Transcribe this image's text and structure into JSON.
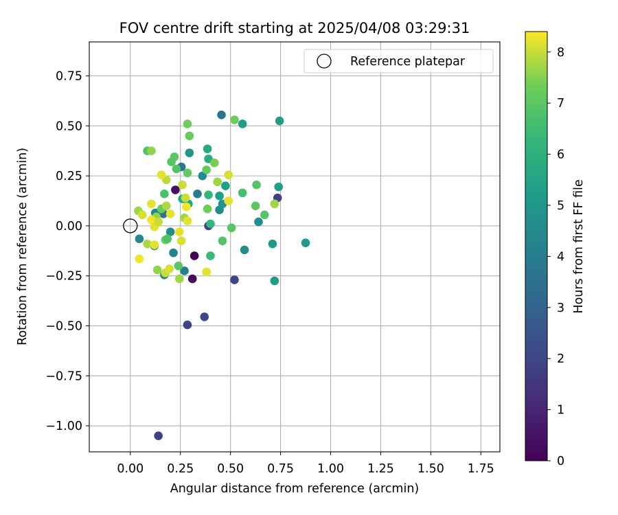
{
  "chart_data": {
    "type": "scatter",
    "title": "FOV centre drift starting at 2025/04/08 03:29:31",
    "xlabel": "Angular distance from reference (arcmin)",
    "ylabel": "Rotation from reference (arcmin)",
    "xlim": [
      -0.205,
      1.845
    ],
    "ylim": [
      -1.13,
      0.92
    ],
    "xticks": [
      "0.00",
      "0.25",
      "0.50",
      "0.75",
      "1.00",
      "1.25",
      "1.50",
      "1.75"
    ],
    "xtick_values": [
      0,
      0.25,
      0.5,
      0.75,
      1.0,
      1.25,
      1.5,
      1.75
    ],
    "yticks": [
      "−1.00",
      "−0.75",
      "−0.50",
      "−0.25",
      "0.00",
      "0.25",
      "0.50",
      "0.75"
    ],
    "ytick_values": [
      -1.0,
      -0.75,
      -0.5,
      -0.25,
      0,
      0.25,
      0.5,
      0.75
    ],
    "grid": true,
    "legend": {
      "placement": "top-right",
      "label": "Reference platepar"
    },
    "reference_point": {
      "x": 0.0,
      "y": 0.0
    },
    "colorbar": {
      "label": "Hours from first FF file",
      "colormap": "viridis",
      "range": [
        0,
        8.4
      ],
      "ticks": [
        "0",
        "1",
        "2",
        "3",
        "4",
        "5",
        "6",
        "7",
        "8"
      ],
      "tick_values": [
        0,
        1,
        2,
        3,
        4,
        5,
        6,
        7,
        8
      ]
    },
    "points": [
      {
        "x": 0.14,
        "y": -1.05,
        "c": 1.8
      },
      {
        "x": 0.285,
        "y": -0.495,
        "c": 1.9
      },
      {
        "x": 0.37,
        "y": -0.455,
        "c": 2.0
      },
      {
        "x": 0.52,
        "y": -0.27,
        "c": 2.0
      },
      {
        "x": 0.31,
        "y": -0.265,
        "c": 0.3
      },
      {
        "x": 0.32,
        "y": -0.15,
        "c": 0.1
      },
      {
        "x": 0.225,
        "y": 0.18,
        "c": 0.4
      },
      {
        "x": 0.39,
        "y": 0.0,
        "c": 1.8
      },
      {
        "x": 0.735,
        "y": 0.14,
        "c": 1.8
      },
      {
        "x": 0.455,
        "y": 0.555,
        "c": 3.7
      },
      {
        "x": 0.745,
        "y": 0.525,
        "c": 5.2
      },
      {
        "x": 0.56,
        "y": 0.51,
        "c": 5.3
      },
      {
        "x": 0.72,
        "y": -0.275,
        "c": 5.1
      },
      {
        "x": 0.875,
        "y": -0.085,
        "c": 5.1
      },
      {
        "x": 0.71,
        "y": -0.09,
        "c": 5.1
      },
      {
        "x": 0.57,
        "y": -0.12,
        "c": 4.6
      },
      {
        "x": 0.64,
        "y": 0.02,
        "c": 4.6
      },
      {
        "x": 0.74,
        "y": 0.195,
        "c": 5.3
      },
      {
        "x": 0.27,
        "y": -0.225,
        "c": 3.9
      },
      {
        "x": 0.215,
        "y": -0.135,
        "c": 4.1
      },
      {
        "x": 0.17,
        "y": -0.245,
        "c": 4.5
      },
      {
        "x": 0.045,
        "y": -0.065,
        "c": 4.4
      },
      {
        "x": 0.12,
        "y": -0.1,
        "c": 5.0
      },
      {
        "x": 0.2,
        "y": -0.03,
        "c": 4.6
      },
      {
        "x": 0.125,
        "y": 0.065,
        "c": 4.3
      },
      {
        "x": 0.165,
        "y": 0.06,
        "c": 3.6
      },
      {
        "x": 0.255,
        "y": 0.295,
        "c": 3.7
      },
      {
        "x": 0.335,
        "y": 0.16,
        "c": 3.9
      },
      {
        "x": 0.36,
        "y": 0.25,
        "c": 4.6
      },
      {
        "x": 0.295,
        "y": 0.365,
        "c": 5.0
      },
      {
        "x": 0.445,
        "y": 0.08,
        "c": 4.6
      },
      {
        "x": 0.46,
        "y": 0.11,
        "c": 4.9
      },
      {
        "x": 0.475,
        "y": 0.2,
        "c": 5.3
      },
      {
        "x": 0.445,
        "y": 0.15,
        "c": 5.3
      },
      {
        "x": 0.29,
        "y": 0.11,
        "c": 5.6
      },
      {
        "x": 0.26,
        "y": 0.135,
        "c": 5.7
      },
      {
        "x": 0.385,
        "y": 0.385,
        "c": 5.7
      },
      {
        "x": 0.39,
        "y": 0.335,
        "c": 5.9
      },
      {
        "x": 0.39,
        "y": 0.155,
        "c": 6.2
      },
      {
        "x": 0.4,
        "y": 0.01,
        "c": 6.2
      },
      {
        "x": 0.4,
        "y": -0.15,
        "c": 6.4
      },
      {
        "x": 0.46,
        "y": -0.075,
        "c": 6.9
      },
      {
        "x": 0.505,
        "y": -0.01,
        "c": 6.9
      },
      {
        "x": 0.56,
        "y": 0.165,
        "c": 6.6
      },
      {
        "x": 0.625,
        "y": 0.1,
        "c": 7.0
      },
      {
        "x": 0.63,
        "y": 0.205,
        "c": 6.9
      },
      {
        "x": 0.67,
        "y": 0.055,
        "c": 6.9
      },
      {
        "x": 0.72,
        "y": 0.11,
        "c": 7.7
      },
      {
        "x": 0.295,
        "y": 0.45,
        "c": 7.2
      },
      {
        "x": 0.285,
        "y": 0.51,
        "c": 7.3
      },
      {
        "x": 0.52,
        "y": 0.53,
        "c": 7.3
      },
      {
        "x": 0.085,
        "y": 0.375,
        "c": 6.8
      },
      {
        "x": 0.105,
        "y": 0.375,
        "c": 7.6
      },
      {
        "x": 0.205,
        "y": 0.32,
        "c": 6.9
      },
      {
        "x": 0.22,
        "y": 0.345,
        "c": 7.0
      },
      {
        "x": 0.23,
        "y": 0.285,
        "c": 6.8
      },
      {
        "x": 0.285,
        "y": 0.265,
        "c": 7.1
      },
      {
        "x": 0.38,
        "y": 0.28,
        "c": 7.2
      },
      {
        "x": 0.42,
        "y": 0.315,
        "c": 7.4
      },
      {
        "x": 0.435,
        "y": 0.22,
        "c": 7.7
      },
      {
        "x": 0.49,
        "y": 0.255,
        "c": 8.1
      },
      {
        "x": 0.49,
        "y": 0.125,
        "c": 8.2
      },
      {
        "x": 0.385,
        "y": 0.085,
        "c": 7.3
      },
      {
        "x": 0.17,
        "y": 0.16,
        "c": 6.7
      },
      {
        "x": 0.18,
        "y": 0.23,
        "c": 7.9
      },
      {
        "x": 0.155,
        "y": 0.255,
        "c": 8.2
      },
      {
        "x": 0.26,
        "y": 0.205,
        "c": 8.0
      },
      {
        "x": 0.275,
        "y": 0.14,
        "c": 8.0
      },
      {
        "x": 0.28,
        "y": 0.095,
        "c": 8.3
      },
      {
        "x": 0.27,
        "y": 0.04,
        "c": 7.7
      },
      {
        "x": 0.285,
        "y": 0.025,
        "c": 8.2
      },
      {
        "x": 0.245,
        "y": -0.03,
        "c": 8.2
      },
      {
        "x": 0.255,
        "y": -0.075,
        "c": 8.1
      },
      {
        "x": 0.04,
        "y": 0.075,
        "c": 7.7
      },
      {
        "x": 0.06,
        "y": 0.055,
        "c": 8.1
      },
      {
        "x": 0.105,
        "y": 0.11,
        "c": 8.2
      },
      {
        "x": 0.155,
        "y": 0.085,
        "c": 7.2
      },
      {
        "x": 0.18,
        "y": 0.1,
        "c": 7.8
      },
      {
        "x": 0.2,
        "y": 0.06,
        "c": 8.2
      },
      {
        "x": 0.13,
        "y": 0.045,
        "c": 7.6
      },
      {
        "x": 0.105,
        "y": 0.03,
        "c": 8.3
      },
      {
        "x": 0.12,
        "y": -0.005,
        "c": 8.2
      },
      {
        "x": 0.14,
        "y": 0.02,
        "c": 8.0
      },
      {
        "x": 0.085,
        "y": -0.09,
        "c": 7.8
      },
      {
        "x": 0.12,
        "y": -0.095,
        "c": 8.2
      },
      {
        "x": 0.045,
        "y": -0.165,
        "c": 8.3
      },
      {
        "x": 0.175,
        "y": -0.07,
        "c": 7.3
      },
      {
        "x": 0.185,
        "y": -0.065,
        "c": 6.8
      },
      {
        "x": 0.135,
        "y": -0.22,
        "c": 7.6
      },
      {
        "x": 0.175,
        "y": -0.235,
        "c": 8.0
      },
      {
        "x": 0.195,
        "y": -0.215,
        "c": 8.1
      },
      {
        "x": 0.24,
        "y": -0.2,
        "c": 7.0
      },
      {
        "x": 0.245,
        "y": -0.265,
        "c": 7.7
      },
      {
        "x": 0.38,
        "y": -0.23,
        "c": 8.2
      }
    ]
  }
}
